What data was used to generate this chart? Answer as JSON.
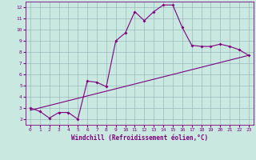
{
  "title": "",
  "xlabel": "Windchill (Refroidissement éolien,°C)",
  "ylabel": "",
  "background_color": "#c8e8e0",
  "line_color": "#800080",
  "grid_color": "#99bbbb",
  "xlim": [
    -0.5,
    23.5
  ],
  "ylim": [
    1.5,
    12.5
  ],
  "xticks": [
    0,
    1,
    2,
    3,
    4,
    5,
    6,
    7,
    8,
    9,
    10,
    11,
    12,
    13,
    14,
    15,
    16,
    17,
    18,
    19,
    20,
    21,
    22,
    23
  ],
  "yticks": [
    2,
    3,
    4,
    5,
    6,
    7,
    8,
    9,
    10,
    11,
    12
  ],
  "jagged_x": [
    0,
    1,
    2,
    3,
    4,
    5,
    6,
    7,
    8,
    9,
    10,
    11,
    12,
    13,
    14,
    15,
    16,
    17,
    18,
    19,
    20,
    21,
    22,
    23
  ],
  "jagged_y": [
    3.0,
    2.7,
    2.1,
    2.6,
    2.6,
    2.0,
    5.4,
    5.3,
    4.9,
    9.0,
    9.7,
    11.6,
    10.8,
    11.6,
    12.2,
    12.2,
    10.2,
    8.6,
    8.5,
    8.5,
    8.7,
    8.5,
    8.2,
    7.7
  ],
  "trend_x": [
    0,
    23
  ],
  "trend_y": [
    2.8,
    7.7
  ]
}
